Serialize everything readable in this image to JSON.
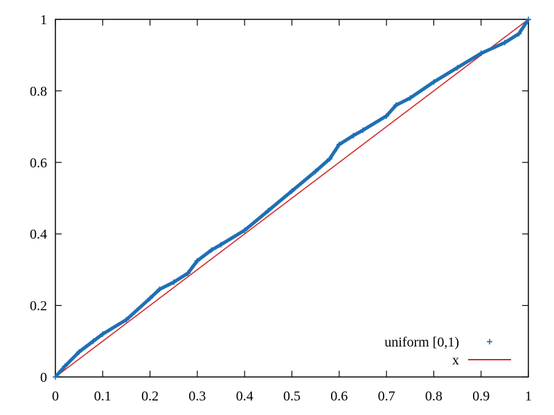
{
  "chart_data": {
    "type": "scatter",
    "title": "",
    "xlabel": "",
    "ylabel": "",
    "xlim": [
      0,
      1
    ],
    "ylim": [
      0,
      1
    ],
    "x_ticks": [
      "0",
      "0.1",
      "0.2",
      "0.3",
      "0.4",
      "0.5",
      "0.6",
      "0.7",
      "0.8",
      "0.9",
      "1"
    ],
    "y_ticks": [
      "0",
      "0.2",
      "0.4",
      "0.6",
      "0.8",
      "1"
    ],
    "grid": false,
    "legend_position": "bottom-right",
    "series": [
      {
        "name": "uniform [0,1)",
        "style": "points",
        "marker": "plus",
        "color": "#1f6fb4",
        "x": [
          0,
          0.02,
          0.05,
          0.08,
          0.1,
          0.15,
          0.2,
          0.22,
          0.25,
          0.28,
          0.3,
          0.33,
          0.35,
          0.4,
          0.45,
          0.5,
          0.55,
          0.58,
          0.6,
          0.63,
          0.65,
          0.7,
          0.72,
          0.75,
          0.8,
          0.85,
          0.9,
          0.95,
          0.98,
          1.0
        ],
        "y": [
          0,
          0.03,
          0.07,
          0.1,
          0.12,
          0.16,
          0.22,
          0.245,
          0.265,
          0.29,
          0.325,
          0.355,
          0.37,
          0.41,
          0.465,
          0.52,
          0.575,
          0.61,
          0.65,
          0.675,
          0.69,
          0.73,
          0.76,
          0.78,
          0.825,
          0.865,
          0.905,
          0.935,
          0.96,
          1.0
        ]
      },
      {
        "name": "x",
        "style": "line",
        "color": "#d62728",
        "x": [
          0,
          1
        ],
        "y": [
          0,
          1
        ]
      }
    ]
  }
}
